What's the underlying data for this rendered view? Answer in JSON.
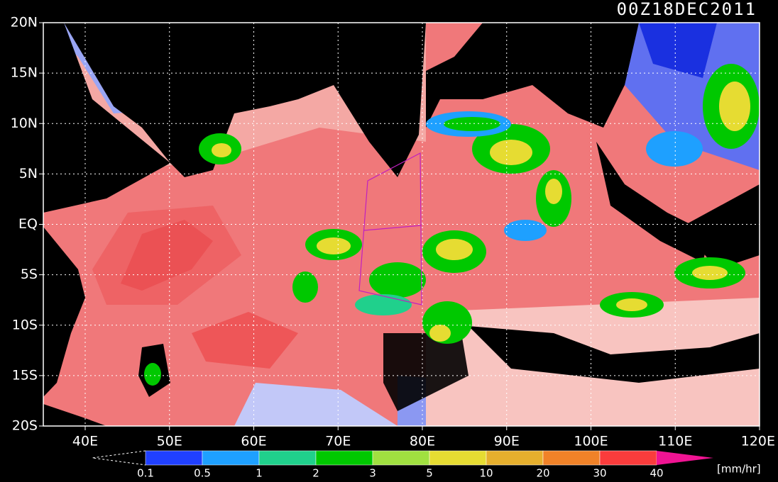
{
  "title": "00Z18DEC2011",
  "lat_labels": [
    "20N",
    "15N",
    "10N",
    "5N",
    "EQ",
    "5S",
    "10S",
    "15S",
    "20S"
  ],
  "lon_labels": [
    "40E",
    "50E",
    "60E",
    "70E",
    "80E",
    "90E",
    "100E",
    "110E",
    "120E"
  ],
  "colorbar": {
    "labels": [
      "0.1",
      "0.5",
      "1",
      "2",
      "3",
      "5",
      "10",
      "20",
      "30",
      "40"
    ],
    "colors": [
      "#2040ff",
      "#1ea0ff",
      "#20d08c",
      "#00c800",
      "#a0e040",
      "#e6dc32",
      "#e6af2d",
      "#f08228",
      "#fa3c3c",
      "#f01493"
    ],
    "unit": "[mm/hr]"
  }
}
